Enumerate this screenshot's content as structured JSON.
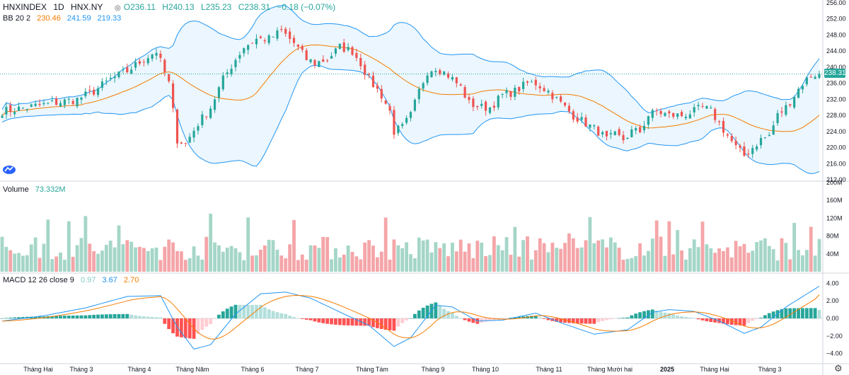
{
  "header": {
    "symbol": "HNXINDEX",
    "interval": "1D",
    "exchange": "HNX.NY",
    "open_label": "O236.11",
    "high_label": "H240.13",
    "low_label": "L235.23",
    "close_label": "C238.31",
    "change_label": "−0.18 (−0.07%)"
  },
  "bb_legend": {
    "name": "BB 20 2",
    "basis": "230.46",
    "upper": "241.59",
    "lower": "219.33"
  },
  "volume_legend": {
    "name": "Volume",
    "value": "73.332M"
  },
  "macd_legend": {
    "name": "MACD 12 26 close 9",
    "hist": "0.97",
    "macd": "3.67",
    "signal": "2.70"
  },
  "price_tag": "238.31",
  "colors": {
    "up": "#26a69a",
    "down": "#ef5350",
    "bb_band": "#2196f3",
    "bb_fill": "#e3f2fd",
    "bb_basis": "#f57c00",
    "vol_up": "#a5d6c8",
    "vol_down": "#f4a5a8",
    "macd_line": "#2196f3",
    "signal_line": "#f57c00"
  },
  "chart_data": {
    "type": "candlestick",
    "x_labels": [
      "Tháng Hai",
      "Tháng 3",
      "Tháng 4",
      "Tháng Năm",
      "Tháng 6",
      "Tháng 7",
      "Tháng Tám",
      "Tháng 9",
      "Tháng 10",
      "Tháng 11",
      "Tháng Mười hai",
      "2025",
      "Tháng Hai",
      "Tháng 3"
    ],
    "price_axis": {
      "ticks": [
        "256.00",
        "252.00",
        "248.00",
        "244.00",
        "240.00",
        "236.00",
        "232.00",
        "228.00",
        "224.00",
        "220.00",
        "216.00",
        "212.00"
      ],
      "range": [
        212,
        256
      ]
    },
    "volume_axis": {
      "ticks": [
        "200M",
        "160M",
        "120M",
        "80M",
        "40M"
      ],
      "range": [
        0,
        200
      ]
    },
    "macd_axis": {
      "ticks": [
        "4.00",
        "2.00",
        "0.00",
        "−2.00",
        "−4.00"
      ],
      "range": [
        -5,
        5
      ]
    },
    "last_close": 238.31,
    "close_path": [
      [
        0,
        229
      ],
      [
        6,
        230
      ],
      [
        12,
        231
      ],
      [
        18,
        232
      ],
      [
        22,
        234
      ],
      [
        26,
        237
      ],
      [
        30,
        239
      ],
      [
        34,
        242
      ],
      [
        37,
        244
      ],
      [
        40,
        236
      ],
      [
        42,
        222
      ],
      [
        44,
        221
      ],
      [
        47,
        226
      ],
      [
        50,
        230
      ],
      [
        53,
        237
      ],
      [
        56,
        242
      ],
      [
        58,
        245
      ],
      [
        61,
        247
      ],
      [
        64,
        247
      ],
      [
        67,
        249
      ],
      [
        70,
        246
      ],
      [
        73,
        242
      ],
      [
        75,
        241
      ],
      [
        78,
        242
      ],
      [
        81,
        245
      ],
      [
        84,
        244
      ],
      [
        86,
        241
      ],
      [
        88,
        237
      ],
      [
        91,
        233
      ],
      [
        93,
        229
      ],
      [
        94,
        224
      ],
      [
        96,
        225
      ],
      [
        98,
        228
      ],
      [
        100,
        234
      ],
      [
        102,
        239
      ],
      [
        104,
        240
      ],
      [
        107,
        238
      ],
      [
        110,
        235
      ],
      [
        112,
        231
      ],
      [
        115,
        230
      ],
      [
        117,
        230
      ],
      [
        120,
        233
      ],
      [
        123,
        234
      ],
      [
        126,
        236
      ],
      [
        128,
        236
      ],
      [
        131,
        234
      ],
      [
        134,
        231
      ],
      [
        137,
        228
      ],
      [
        140,
        226
      ],
      [
        143,
        224
      ],
      [
        145,
        222
      ],
      [
        147,
        223
      ],
      [
        149,
        222
      ],
      [
        151,
        224
      ],
      [
        153,
        224
      ],
      [
        155,
        228
      ],
      [
        157,
        229
      ],
      [
        160,
        228
      ],
      [
        163,
        228
      ],
      [
        166,
        229
      ],
      [
        168,
        230
      ],
      [
        170,
        229
      ],
      [
        172,
        226
      ],
      [
        174,
        223
      ],
      [
        176,
        220
      ],
      [
        178,
        218
      ],
      [
        180,
        220
      ],
      [
        182,
        222
      ],
      [
        184,
        223
      ],
      [
        186,
        228
      ],
      [
        188,
        230
      ],
      [
        190,
        233
      ],
      [
        192,
        236
      ],
      [
        194,
        238
      ],
      [
        196,
        238.31
      ]
    ],
    "volume_seed": 73.332,
    "macd_path": [
      [
        0,
        -0.3
      ],
      [
        10,
        0.3
      ],
      [
        20,
        1.2
      ],
      [
        30,
        2.5
      ],
      [
        38,
        2.6
      ],
      [
        42,
        -1
      ],
      [
        46,
        -3.5
      ],
      [
        50,
        -3
      ],
      [
        56,
        0.5
      ],
      [
        62,
        2.8
      ],
      [
        68,
        3.0
      ],
      [
        74,
        2.3
      ],
      [
        82,
        0.5
      ],
      [
        88,
        -0.8
      ],
      [
        94,
        -3.2
      ],
      [
        98,
        -2.2
      ],
      [
        104,
        1.5
      ],
      [
        108,
        1.3
      ],
      [
        114,
        -0.3
      ],
      [
        120,
        -0.2
      ],
      [
        128,
        0.6
      ],
      [
        134,
        -0.5
      ],
      [
        142,
        -1.8
      ],
      [
        150,
        -1.3
      ],
      [
        156,
        0.7
      ],
      [
        160,
        1.0
      ],
      [
        166,
        0.8
      ],
      [
        172,
        -0.3
      ],
      [
        178,
        -1.7
      ],
      [
        182,
        -1.0
      ],
      [
        188,
        1.3
      ],
      [
        196,
        3.67
      ]
    ],
    "grid": false
  }
}
